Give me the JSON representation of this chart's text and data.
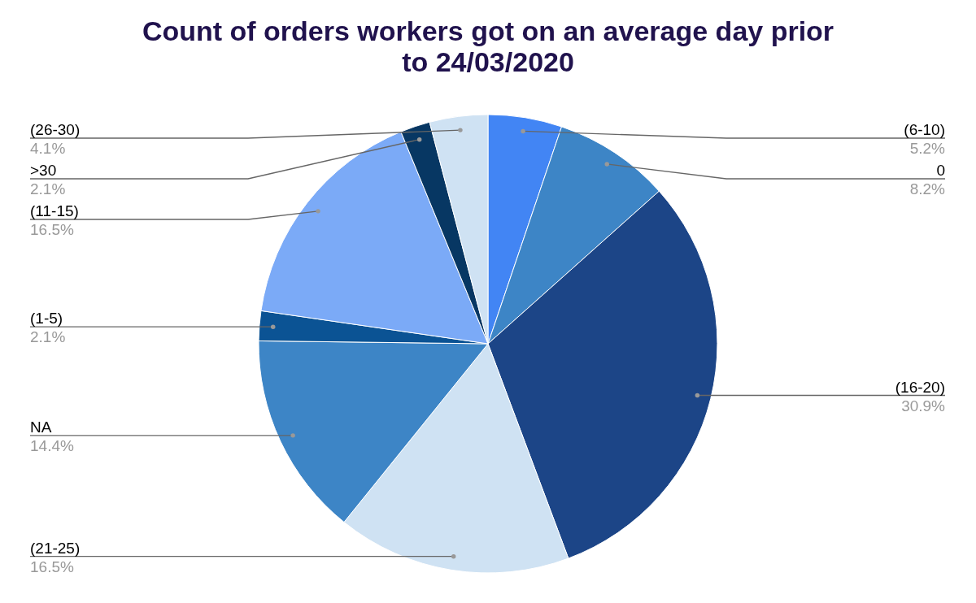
{
  "chart_data": {
    "type": "pie",
    "title": "Count of orders workers got on an average day prior to 24/03/2020",
    "categories": [
      "(6-10)",
      "0",
      "(16-20)",
      "(21-25)",
      "NA",
      "(1-5)",
      "(11-15)",
      ">30",
      "(26-30)"
    ],
    "values": [
      5.2,
      8.2,
      30.9,
      16.5,
      14.4,
      2.1,
      16.5,
      2.1,
      4.1
    ],
    "value_labels": [
      "5.2%",
      "8.2%",
      "30.9%",
      "16.5%",
      "14.4%",
      "2.1%",
      "16.5%",
      "2.1%",
      "4.1%"
    ],
    "colors": [
      "#4285f4",
      "#3d85c6",
      "#1c4587",
      "#cfe2f3",
      "#3d85c6",
      "#0b5394",
      "#7baaf7",
      "#073763",
      "#cfe2f3"
    ]
  }
}
